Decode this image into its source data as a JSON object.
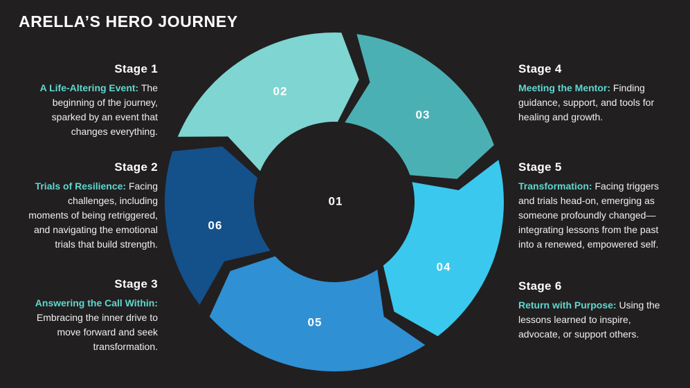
{
  "title": "ARELLA’S HERO JOURNEY",
  "diagram": {
    "center_label": "01",
    "segments": [
      {
        "label": "02",
        "color": "#7fd5d1"
      },
      {
        "label": "03",
        "color": "#4bb0b3"
      },
      {
        "label": "04",
        "color": "#3bc8ee"
      },
      {
        "label": "05",
        "color": "#2f90d4"
      },
      {
        "label": "06",
        "color": "#14508a"
      }
    ]
  },
  "stages": [
    {
      "heading": "Stage 1",
      "highlight": "A Life-Altering Event:",
      "body": " The\nbeginning of the journey,\nsparked by an event that\nchanges everything."
    },
    {
      "heading": "Stage 2",
      "highlight": "Trials of Resilience:",
      "body": " Facing\nchallenges, including\nmoments of being retriggered,\nand navigating the emotional\ntrials that build strength."
    },
    {
      "heading": "Stage 3",
      "highlight": "Answering the Call Within:",
      "body": "\nEmbracing the inner drive to\nmove forward and seek\ntransformation."
    },
    {
      "heading": "Stage 4",
      "highlight": "Meeting the Mentor:",
      "body": " Finding\nguidance, support, and tools for\nhealing and growth."
    },
    {
      "heading": "Stage 5",
      "highlight": "Transformation:",
      "body": " Facing triggers\nand trials head-on, emerging as\nsomeone profoundly changed—\nintegrating lessons from the past\ninto a renewed, empowered self."
    },
    {
      "heading": "Stage 6",
      "highlight": "Return with Purpose:",
      "body": " Using the\nlessons learned to inspire,\nadvocate, or support others."
    }
  ]
}
